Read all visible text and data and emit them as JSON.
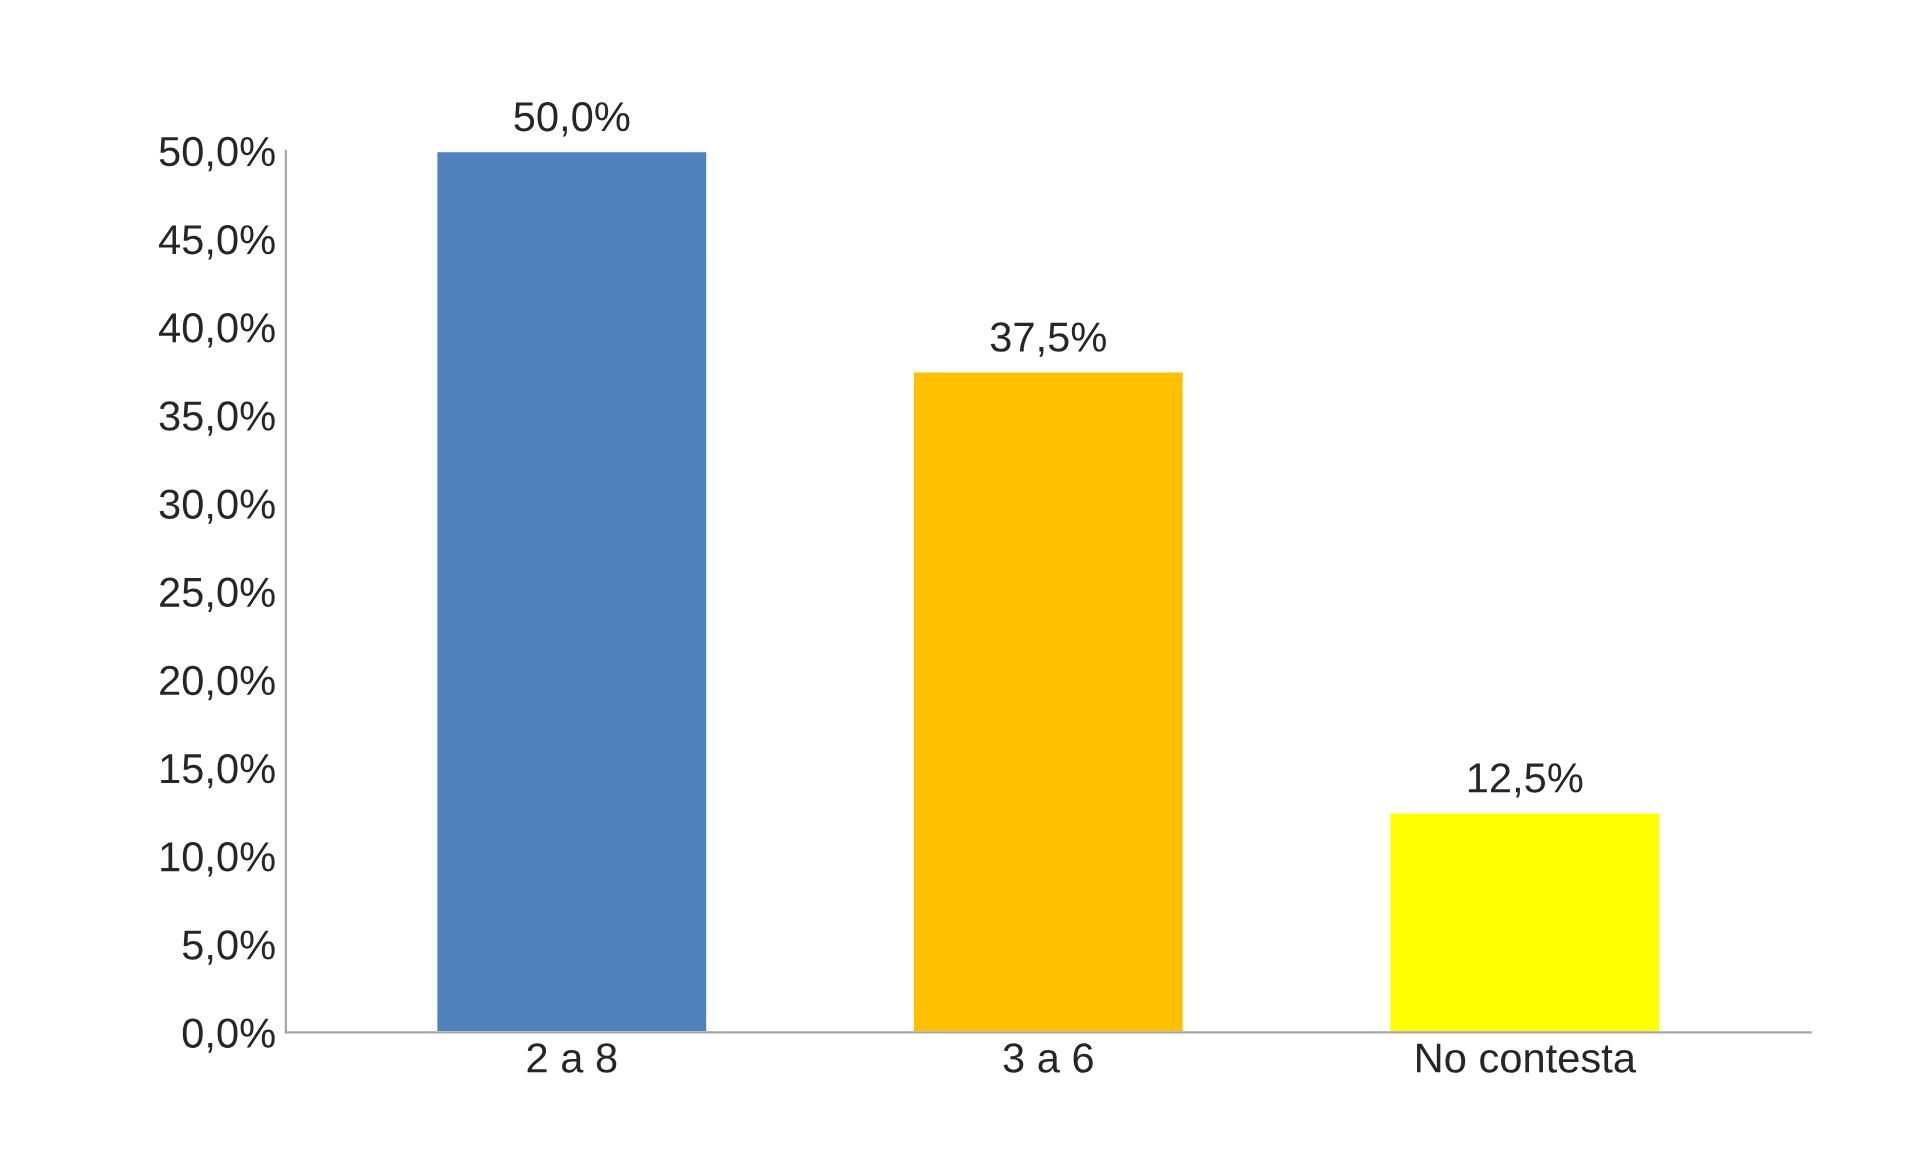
{
  "chart_data": {
    "type": "bar",
    "categories": [
      "2 a 8",
      "3 a 6",
      "No contesta"
    ],
    "values": [
      50.0,
      37.5,
      12.5
    ],
    "colors": [
      "#4f81bd",
      "#ffc000",
      "#ffff00"
    ],
    "value_labels": [
      "50,0%",
      "37,5%",
      "12,5%"
    ],
    "ylim": [
      0,
      50
    ],
    "yticks": [
      {
        "value": 0,
        "label": "0,0%"
      },
      {
        "value": 5,
        "label": "5,0%"
      },
      {
        "value": 10,
        "label": "10,0%"
      },
      {
        "value": 15,
        "label": "15,0%"
      },
      {
        "value": 20,
        "label": "20,0%"
      },
      {
        "value": 25,
        "label": "25,0%"
      },
      {
        "value": 30,
        "label": "30,0%"
      },
      {
        "value": 35,
        "label": "35,0%"
      },
      {
        "value": 40,
        "label": "40,0%"
      },
      {
        "value": 45,
        "label": "45,0%"
      },
      {
        "value": 50,
        "label": "50,0%"
      }
    ],
    "grid": false,
    "legend": false
  }
}
